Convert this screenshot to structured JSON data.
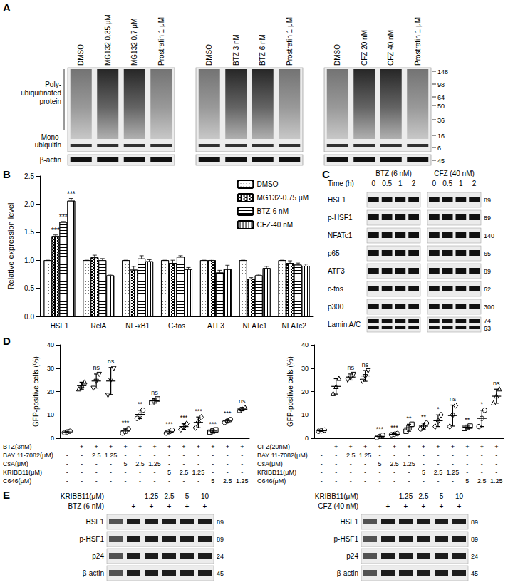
{
  "panel_labels": [
    "A",
    "B",
    "C",
    "D",
    "E"
  ],
  "panel_A": {
    "left_labels": [
      [
        "Poly-",
        "ubiquitinated",
        "protein"
      ],
      [
        "Mono-",
        "ubiquitin"
      ],
      [
        "β-actin"
      ]
    ],
    "blots": [
      {
        "lanes": [
          "DMSO",
          "MG132 0.35 μM",
          "MG132 0.7 μM",
          "Prostratin 1 μM"
        ]
      },
      {
        "lanes": [
          "DMSO",
          "BTZ 3 nM",
          "BTZ 6 nM",
          "Prostratin 1 μM"
        ]
      },
      {
        "lanes": [
          "DMSO",
          "CFZ 20 nM",
          "CFZ 40 nM",
          "Prostratin 1 μM"
        ]
      }
    ],
    "kDa": [
      "148",
      "98",
      "64",
      "50",
      "36",
      "16",
      "6"
    ],
    "actin_kDa": "45"
  },
  "panel_C": {
    "groups": [
      "BTZ (6 nM)",
      "CFZ (40 nM)"
    ],
    "time_label": "Time (h)",
    "times": [
      "0",
      "0.5",
      "1",
      "2"
    ],
    "rows": [
      {
        "name": "HSF1",
        "kDa": [
          "89"
        ]
      },
      {
        "name": "p-HSF1",
        "kDa": [
          "89"
        ]
      },
      {
        "name": "NFATc1",
        "kDa": [
          "140"
        ]
      },
      {
        "name": "p65",
        "kDa": [
          "65"
        ]
      },
      {
        "name": "ATF3",
        "kDa": [
          "89"
        ]
      },
      {
        "name": "c-fos",
        "kDa": [
          "62"
        ]
      },
      {
        "name": "p300",
        "kDa": [
          "300"
        ]
      },
      {
        "name": "Lamin A/C",
        "kDa": [
          "74",
          "63"
        ]
      }
    ]
  },
  "panel_E": {
    "blots": [
      {
        "header": [
          {
            "label": "KRIBB11(μM)",
            "values": [
              null,
              "-",
              "1.25",
              "2.5",
              "5",
              "10"
            ]
          },
          {
            "label": "BTZ (6 nM)",
            "values": [
              "-",
              "+",
              "+",
              "+",
              "+",
              "+"
            ]
          }
        ]
      },
      {
        "header": [
          {
            "label": "KRIBB11(μM)",
            "values": [
              null,
              "-",
              "1.25",
              "2.5",
              "5",
              "10"
            ]
          },
          {
            "label": "CFZ (40 nM)",
            "values": [
              "-",
              "+",
              "+",
              "+",
              "+",
              "+"
            ]
          }
        ]
      }
    ],
    "rows": [
      {
        "name": "HSF1",
        "kDa": "89"
      },
      {
        "name": "p-HSF1",
        "kDa": "89"
      },
      {
        "name": "p24",
        "kDa": "24"
      },
      {
        "name": "β-actin",
        "kDa": "45"
      }
    ]
  },
  "chart_data": [
    {
      "type": "bar",
      "y_label": "Relative expression level",
      "grid": false,
      "legend": "upper right",
      "categories": [
        "HSF1",
        "RelA",
        "NF-κB1",
        "C-fos",
        "ATF3",
        "NFATc1",
        "NFATc2"
      ],
      "ylim": [
        0,
        2.5
      ],
      "yticks": [
        {
          "value": 0,
          "label": "0.0"
        },
        0.5,
        {
          "value": 1,
          "label": "1.0"
        },
        1.5,
        {
          "value": 2,
          "label": "2.0"
        },
        2.5
      ],
      "series": [
        {
          "name": "DMSO",
          "color": "#ffffff",
          "values": [
            1,
            1,
            1,
            1,
            1,
            1,
            1
          ],
          "errors": [
            0,
            0,
            0,
            0,
            0,
            0,
            0
          ]
        },
        {
          "name": "MG132-0.75 μM",
          "color": "#ffffff",
          "values": [
            1.43,
            1.05,
            0.83,
            0.95,
            1.0,
            0.67,
            0.95
          ],
          "errors": [
            0.02,
            0.04,
            0.06,
            0.05,
            0.02,
            0.02,
            0.04
          ]
        },
        {
          "name": "BTZ-6 nM",
          "color": "#ffffff",
          "values": [
            1.68,
            1.0,
            1.03,
            1.06,
            0.78,
            0.73,
            0.92
          ],
          "errors": [
            0.01,
            0.03,
            0.05,
            0.02,
            0.04,
            0.02,
            0.03
          ]
        },
        {
          "name": "CFZ-40 nM",
          "color": "#ffffff",
          "values": [
            2.06,
            0.73,
            0.98,
            0.84,
            0.84,
            0.86,
            0.9
          ],
          "errors": [
            0.04,
            0.02,
            0.03,
            0.03,
            0.07,
            0.03,
            0.03
          ]
        }
      ],
      "annotations": [
        {
          "category": "HSF1",
          "series": "MG132-0.75 μM",
          "text": "***"
        },
        {
          "category": "HSF1",
          "series": "BTZ-6 nM",
          "text": "***"
        },
        {
          "category": "HSF1",
          "series": "CFZ-40 nM",
          "text": "***"
        }
      ]
    },
    {
      "type": "scatter",
      "y_label": "GFP-positive cells (%)",
      "grid": false,
      "ylim": [
        0,
        40
      ],
      "yticks": [
        0,
        10,
        20,
        30,
        40
      ],
      "conditions": [
        {
          "label": "BTZ(3nM)",
          "values": [
            "-",
            "+",
            "+",
            "+",
            "+",
            "+",
            "+",
            "+",
            "+",
            "+",
            "+",
            "+",
            "+"
          ]
        },
        {
          "label": "BAY 11-7082(μM)",
          "values": [
            "-",
            "-",
            "2.5",
            "1.25",
            "-",
            "-",
            "-",
            "-",
            "-",
            "-",
            "-",
            "-",
            "-"
          ]
        },
        {
          "label": "CsA(μM)",
          "values": [
            "-",
            "-",
            "-",
            "-",
            "5",
            "2.5",
            "1.25",
            "-",
            "-",
            "-",
            "-",
            "-",
            "-"
          ]
        },
        {
          "label": "KRIBB11(μM)",
          "values": [
            "-",
            "-",
            "-",
            "-",
            "-",
            "-",
            "-",
            "5",
            "2.5",
            "1.25",
            "-",
            "-",
            "-"
          ]
        },
        {
          "label": "C646(μM)",
          "values": [
            "-",
            "-",
            "-",
            "-",
            "-",
            "-",
            "-",
            "-",
            "-",
            "-",
            "5",
            "2.5",
            "1.25"
          ]
        }
      ],
      "groups": [
        {
          "marker": "circle",
          "points": [
            2.4,
            2.7,
            3.0
          ],
          "mean": 2.7,
          "sd": 0.3,
          "significance": null
        },
        {
          "marker": "triangle",
          "points": [
            21.0,
            22.5,
            24.0
          ],
          "mean": 22.5,
          "sd": 1.5,
          "significance": null
        },
        {
          "marker": "triangle-down",
          "points": [
            21.5,
            24.5,
            27.5
          ],
          "mean": 24.5,
          "sd": 3.0,
          "significance": "ns"
        },
        {
          "marker": "triangle-down",
          "points": [
            18.5,
            25.0,
            30.0
          ],
          "mean": 24.5,
          "sd": 5.8,
          "significance": "ns"
        },
        {
          "marker": "circle",
          "points": [
            2.2,
            3.0,
            4.0
          ],
          "mean": 3.1,
          "sd": 0.9,
          "significance": "***"
        },
        {
          "marker": "circle",
          "points": [
            8.5,
            10.0,
            12.0
          ],
          "mean": 10.2,
          "sd": 1.8,
          "significance": "**"
        },
        {
          "marker": "square",
          "points": [
            15.2,
            16.0,
            16.8
          ],
          "mean": 16.0,
          "sd": 0.8,
          "significance": "ns"
        },
        {
          "marker": "circle",
          "points": [
            2.2,
            2.8,
            3.5
          ],
          "mean": 2.8,
          "sd": 0.65,
          "significance": "***"
        },
        {
          "marker": "diamond",
          "points": [
            3.8,
            5.0,
            6.2
          ],
          "mean": 5.0,
          "sd": 1.2,
          "significance": "***"
        },
        {
          "marker": "diamond",
          "points": [
            4.5,
            7.0,
            9.0
          ],
          "mean": 6.8,
          "sd": 2.3,
          "significance": "***"
        },
        {
          "marker": "square",
          "points": [
            2.6,
            3.1,
            3.6
          ],
          "mean": 3.1,
          "sd": 0.5,
          "significance": "***"
        },
        {
          "marker": "circle",
          "points": [
            6.8,
            7.4,
            8.0
          ],
          "mean": 7.4,
          "sd": 0.6,
          "significance": "***"
        },
        {
          "marker": "triangle",
          "points": [
            11.8,
            12.5,
            13.2
          ],
          "mean": 12.5,
          "sd": 0.7,
          "significance": "ns"
        }
      ]
    },
    {
      "type": "scatter",
      "y_label": "GFP-positive cells (%)",
      "grid": false,
      "ylim": [
        0,
        40
      ],
      "yticks": [
        0,
        10,
        20,
        30,
        40
      ],
      "conditions": [
        {
          "label": "CFZ(20nM)",
          "values": [
            "-",
            "+",
            "+",
            "+",
            "+",
            "+",
            "+",
            "+",
            "+",
            "+",
            "+",
            "+",
            "+"
          ]
        },
        {
          "label": "BAY 11-7082(μM)",
          "values": [
            "-",
            "-",
            "2.5",
            "1.25",
            "-",
            "-",
            "-",
            "-",
            "-",
            "-",
            "-",
            "-",
            "-"
          ]
        },
        {
          "label": "CsA(μM)",
          "values": [
            "-",
            "-",
            "-",
            "-",
            "5",
            "2.5",
            "1.25",
            "-",
            "-",
            "-",
            "-",
            "-",
            "-"
          ]
        },
        {
          "label": "KRIBB11(μM)",
          "values": [
            "-",
            "-",
            "-",
            "-",
            "-",
            "-",
            "-",
            "5",
            "2.5",
            "1.25",
            "-",
            "-",
            "-"
          ]
        },
        {
          "label": "C646(μM)",
          "values": [
            "-",
            "-",
            "-",
            "-",
            "-",
            "-",
            "-",
            "-",
            "-",
            "-",
            "5",
            "2.5",
            "1.25"
          ]
        }
      ],
      "groups": [
        {
          "marker": "circle",
          "points": [
            3.0,
            3.2,
            3.5
          ],
          "mean": 3.2,
          "sd": 0.25,
          "significance": null
        },
        {
          "marker": "triangle",
          "points": [
            19.0,
            22.0,
            25.5
          ],
          "mean": 22.2,
          "sd": 3.3,
          "significance": null
        },
        {
          "marker": "triangle-down",
          "points": [
            25.0,
            26.0,
            27.5
          ],
          "mean": 26.2,
          "sd": 1.3,
          "significance": "ns"
        },
        {
          "marker": "triangle-down",
          "points": [
            24.5,
            26.5,
            29.0
          ],
          "mean": 26.7,
          "sd": 2.3,
          "significance": "ns"
        },
        {
          "marker": "circle",
          "points": [
            0.3,
            0.8,
            1.3
          ],
          "mean": 0.8,
          "sd": 0.5,
          "significance": "***"
        },
        {
          "marker": "circle",
          "points": [
            1.5,
            1.7,
            2.0
          ],
          "mean": 1.7,
          "sd": 0.25,
          "significance": "***"
        },
        {
          "marker": "square",
          "points": [
            3.0,
            4.5,
            6.0
          ],
          "mean": 4.5,
          "sd": 1.5,
          "significance": "**"
        },
        {
          "marker": "circle",
          "points": [
            4.0,
            5.0,
            6.5
          ],
          "mean": 5.2,
          "sd": 1.3,
          "significance": "**"
        },
        {
          "marker": "diamond",
          "points": [
            5.0,
            7.5,
            10.0
          ],
          "mean": 7.5,
          "sd": 2.5,
          "significance": "*"
        },
        {
          "marker": "diamond",
          "points": [
            5.0,
            10.0,
            14.0
          ],
          "mean": 9.7,
          "sd": 4.5,
          "significance": "ns"
        },
        {
          "marker": "square",
          "points": [
            4.2,
            4.7,
            5.2
          ],
          "mean": 4.7,
          "sd": 0.5,
          "significance": "**"
        },
        {
          "marker": "circle",
          "points": [
            5.0,
            8.5,
            12.0
          ],
          "mean": 8.5,
          "sd": 3.5,
          "significance": "*"
        },
        {
          "marker": "triangle",
          "points": [
            15.0,
            18.0,
            21.0
          ],
          "mean": 18.0,
          "sd": 3.0,
          "significance": "ns"
        }
      ]
    }
  ]
}
